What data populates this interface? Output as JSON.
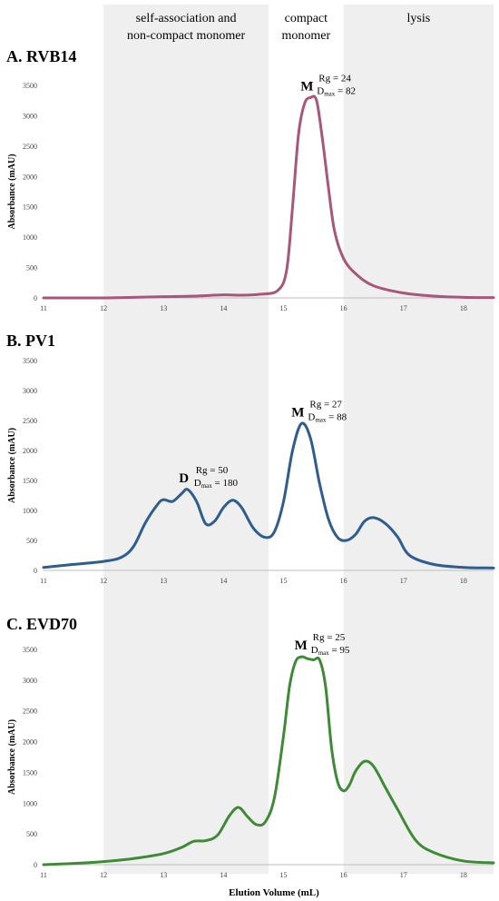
{
  "regions": [
    {
      "label_lines": [
        "self-association and",
        "non-compact monomer"
      ],
      "x_start": 12,
      "x_end": 14.75,
      "shaded": true
    },
    {
      "label_lines": [
        "compact",
        "monomer"
      ],
      "x_start": 14.75,
      "x_end": 16,
      "shaded": false
    },
    {
      "label_lines": [
        "lysis"
      ],
      "x_start": 16,
      "x_end": 18.5,
      "shaded": true
    }
  ],
  "x_axis_label": "Elution Volume (mL)",
  "y_axis_label": "Absorbance (mAU)",
  "colors": {
    "shade": "#efefef",
    "axis": "#bdbdbd",
    "tick_text": "#444444"
  },
  "chart_data": [
    {
      "type": "line",
      "title": "A. RVB14",
      "color": "#a8567a",
      "xlim": [
        11,
        18.5
      ],
      "ylim": [
        0,
        3500
      ],
      "x_ticks": [
        "11",
        "12",
        "13",
        "14",
        "15",
        "16",
        "17",
        "18"
      ],
      "y_ticks": [
        "0",
        "500",
        "1000",
        "1500",
        "2000",
        "2500",
        "3000",
        "3500"
      ],
      "x": [
        11.0,
        11.5,
        12.0,
        12.5,
        13.0,
        13.5,
        14.0,
        14.3,
        14.6,
        14.9,
        15.05,
        15.15,
        15.25,
        15.35,
        15.45,
        15.55,
        15.65,
        15.75,
        15.85,
        16.0,
        16.2,
        16.5,
        17.0,
        17.5,
        18.0,
        18.5
      ],
      "y": [
        0,
        0,
        0,
        10,
        20,
        30,
        50,
        45,
        60,
        120,
        450,
        1500,
        2700,
        3200,
        3300,
        3250,
        2600,
        1800,
        1100,
        650,
        400,
        200,
        80,
        30,
        10,
        5
      ],
      "peak_annotations": [
        {
          "letter": "M",
          "line1": "Rg = 24",
          "dmax_prefix": "D",
          "dmax_sub": "max",
          "dmax_value": " = 82",
          "x": 15.45,
          "y": 3300
        }
      ]
    },
    {
      "type": "line",
      "title": "B. PV1",
      "color": "#2e5d8e",
      "xlim": [
        11,
        18.5
      ],
      "ylim": [
        0,
        3500
      ],
      "x_ticks": [
        "11",
        "12",
        "13",
        "14",
        "15",
        "16",
        "17",
        "18"
      ],
      "y_ticks": [
        "0",
        "500",
        "1000",
        "1500",
        "2000",
        "2500",
        "3000",
        "3500"
      ],
      "x": [
        11.0,
        11.5,
        12.0,
        12.3,
        12.5,
        12.7,
        12.9,
        13.0,
        13.15,
        13.3,
        13.4,
        13.55,
        13.7,
        13.85,
        14.0,
        14.15,
        14.3,
        14.5,
        14.7,
        14.85,
        15.0,
        15.15,
        15.3,
        15.45,
        15.6,
        15.75,
        15.9,
        16.05,
        16.2,
        16.35,
        16.5,
        16.7,
        16.9,
        17.1,
        17.5,
        18.0,
        18.5
      ],
      "y": [
        50,
        100,
        150,
        220,
        400,
        800,
        1100,
        1180,
        1150,
        1280,
        1350,
        1150,
        780,
        820,
        1050,
        1170,
        1050,
        700,
        550,
        650,
        1150,
        2000,
        2450,
        2200,
        1450,
        850,
        550,
        500,
        600,
        820,
        880,
        780,
        560,
        250,
        100,
        50,
        40
      ],
      "peak_annotations": [
        {
          "letter": "D",
          "line1": "Rg = 50",
          "dmax_prefix": "D",
          "dmax_sub": "max",
          "dmax_value": " = 180",
          "x": 13.4,
          "y": 1350
        },
        {
          "letter": "M",
          "line1": "Rg = 27",
          "dmax_prefix": "D",
          "dmax_sub": "max",
          "dmax_value": " = 88",
          "x": 15.3,
          "y": 2450
        }
      ]
    },
    {
      "type": "line",
      "title": "C. EVD70",
      "color": "#3e8a36",
      "xlim": [
        11,
        18.5
      ],
      "ylim": [
        0,
        3500
      ],
      "x_ticks": [
        "11",
        "12",
        "13",
        "14",
        "15",
        "16",
        "17",
        "18"
      ],
      "y_ticks": [
        "0",
        "500",
        "1000",
        "1500",
        "2000",
        "2500",
        "3000",
        "3500"
      ],
      "x": [
        11.0,
        11.5,
        12.0,
        12.5,
        13.0,
        13.3,
        13.5,
        13.7,
        13.9,
        14.1,
        14.25,
        14.4,
        14.55,
        14.7,
        14.85,
        15.0,
        15.1,
        15.2,
        15.3,
        15.4,
        15.5,
        15.6,
        15.7,
        15.8,
        15.9,
        16.0,
        16.1,
        16.2,
        16.35,
        16.5,
        16.7,
        16.9,
        17.2,
        17.5,
        18.0,
        18.5
      ],
      "y": [
        0,
        20,
        50,
        100,
        180,
        280,
        380,
        390,
        480,
        800,
        930,
        780,
        650,
        700,
        1100,
        2100,
        2900,
        3300,
        3380,
        3350,
        3330,
        3330,
        2900,
        1900,
        1350,
        1200,
        1300,
        1520,
        1680,
        1600,
        1250,
        900,
        400,
        200,
        60,
        30
      ],
      "peak_annotations": [
        {
          "letter": "M",
          "line1": "Rg = 25",
          "dmax_prefix": "D",
          "dmax_sub": "max",
          "dmax_value": " = 95",
          "x": 15.35,
          "y": 3380
        }
      ]
    }
  ]
}
